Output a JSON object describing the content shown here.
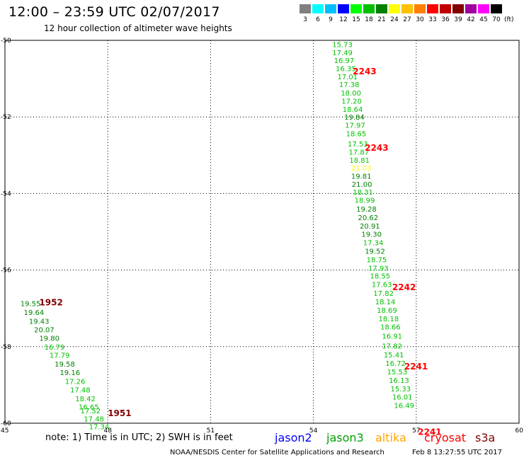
{
  "header": {
    "title": "12:00 – 23:59 UTC 02/07/2017",
    "subtitle": "12 hour collection of altimeter wave heights"
  },
  "legend": {
    "unit": "(ft)",
    "bins": [
      {
        "label": "3",
        "color": "#808080"
      },
      {
        "label": "6",
        "color": "#00ffff"
      },
      {
        "label": "9",
        "color": "#00bfff"
      },
      {
        "label": "12",
        "color": "#0000ff"
      },
      {
        "label": "15",
        "color": "#00ff00"
      },
      {
        "label": "18",
        "color": "#00c000"
      },
      {
        "label": "21",
        "color": "#008000"
      },
      {
        "label": "24",
        "color": "#ffff00"
      },
      {
        "label": "27",
        "color": "#ffc000"
      },
      {
        "label": "30",
        "color": "#ff8000"
      },
      {
        "label": "33",
        "color": "#ff0000"
      },
      {
        "label": "36",
        "color": "#c00000"
      },
      {
        "label": "39",
        "color": "#800000"
      },
      {
        "label": "42",
        "color": "#a000a0"
      },
      {
        "label": "45",
        "color": "#ff00ff"
      },
      {
        "label": "70",
        "color": "#000000"
      }
    ]
  },
  "map": {
    "lon_ticks": [
      "45",
      "48",
      "51",
      "54",
      "57",
      "60"
    ],
    "lat_ticks": [
      "-50",
      "-52",
      "-54",
      "-56",
      "-58",
      "-60"
    ]
  },
  "tracks": [
    {
      "pass_labels": [
        {
          "text": "1952",
          "color": "#800000",
          "lon": 46.0,
          "lat": -56.85
        },
        {
          "text": "1951",
          "color": "#800000",
          "lon": 48.0,
          "lat": -59.74
        }
      ],
      "observations": [
        {
          "lon": 45.45,
          "lat": -56.87,
          "value": "19.55",
          "color": "#008000"
        },
        {
          "lon": 45.55,
          "lat": -57.1,
          "value": "19.64",
          "color": "#008000"
        },
        {
          "lon": 45.7,
          "lat": -57.33,
          "value": "19.43",
          "color": "#008000"
        },
        {
          "lon": 45.85,
          "lat": -57.55,
          "value": "20.07",
          "color": "#008000"
        },
        {
          "lon": 46.0,
          "lat": -57.77,
          "value": "19.80",
          "color": "#008000"
        },
        {
          "lon": 46.15,
          "lat": -58.0,
          "value": "16.79",
          "color": "#00c000"
        },
        {
          "lon": 46.3,
          "lat": -58.22,
          "value": "17.79",
          "color": "#00c000"
        },
        {
          "lon": 46.45,
          "lat": -58.45,
          "value": "19.58",
          "color": "#008000"
        },
        {
          "lon": 46.6,
          "lat": -58.67,
          "value": "19.16",
          "color": "#008000"
        },
        {
          "lon": 46.75,
          "lat": -58.9,
          "value": "17.26",
          "color": "#00c000"
        },
        {
          "lon": 46.9,
          "lat": -59.12,
          "value": "17.48",
          "color": "#00c000"
        },
        {
          "lon": 47.05,
          "lat": -59.35,
          "value": "18.42",
          "color": "#00c000"
        },
        {
          "lon": 47.15,
          "lat": -59.57,
          "value": "16.65",
          "color": "#00c000"
        },
        {
          "lon": 47.2,
          "lat": -59.67,
          "value": "17.52",
          "color": "#00c000"
        },
        {
          "lon": 47.3,
          "lat": -59.88,
          "value": "17.48",
          "color": "#00c000"
        },
        {
          "lon": 47.45,
          "lat": -60.08,
          "value": "17.34",
          "color": "#00c000"
        }
      ]
    },
    {
      "pass_labels": [
        {
          "text": "2243",
          "color": "#ff0000",
          "lon": 55.15,
          "lat": -50.81
        },
        {
          "text": "2243",
          "color": "#ff0000",
          "lon": 55.5,
          "lat": -52.81
        },
        {
          "text": "2242",
          "color": "#ff0000",
          "lon": 56.3,
          "lat": -56.45
        },
        {
          "text": "2241",
          "color": "#ff0000",
          "lon": 56.65,
          "lat": -58.52
        },
        {
          "text": "2241",
          "color": "#ff0000",
          "lon": 57.05,
          "lat": -60.23
        }
      ],
      "observations": [
        {
          "lon": 54.55,
          "lat": -50.1,
          "value": "15.73",
          "color": "#00c000"
        },
        {
          "lon": 54.55,
          "lat": -50.31,
          "value": "17.49",
          "color": "#00c000"
        },
        {
          "lon": 54.6,
          "lat": -50.52,
          "value": "16.97",
          "color": "#00c000"
        },
        {
          "lon": 54.65,
          "lat": -50.73,
          "value": "16.35",
          "color": "#00c000"
        },
        {
          "lon": 54.7,
          "lat": -50.94,
          "value": "17.01",
          "color": "#00c000"
        },
        {
          "lon": 54.75,
          "lat": -51.15,
          "value": "17.38",
          "color": "#00c000"
        },
        {
          "lon": 54.8,
          "lat": -51.37,
          "value": "18.00",
          "color": "#00c000"
        },
        {
          "lon": 54.82,
          "lat": -51.58,
          "value": "17.20",
          "color": "#00c000"
        },
        {
          "lon": 54.85,
          "lat": -51.79,
          "value": "18.64",
          "color": "#00c000"
        },
        {
          "lon": 54.9,
          "lat": -52.0,
          "value": "19.84",
          "color": "#008000"
        },
        {
          "lon": 54.92,
          "lat": -52.21,
          "value": "17.97",
          "color": "#00c000"
        },
        {
          "lon": 54.95,
          "lat": -52.43,
          "value": "18.65",
          "color": "#00c000"
        },
        {
          "lon": 55.0,
          "lat": -52.7,
          "value": "17.53",
          "color": "#00c000"
        },
        {
          "lon": 55.03,
          "lat": -52.91,
          "value": "17.87",
          "color": "#00c000"
        },
        {
          "lon": 55.05,
          "lat": -53.12,
          "value": "18.81",
          "color": "#00c000"
        },
        {
          "lon": 55.1,
          "lat": -53.33,
          "value": "21.03",
          "color": "#ffff00"
        },
        {
          "lon": 55.1,
          "lat": -53.54,
          "value": "19.81",
          "color": "#008000"
        },
        {
          "lon": 55.12,
          "lat": -53.75,
          "value": "21.00",
          "color": "#008000"
        },
        {
          "lon": 55.15,
          "lat": -53.96,
          "value": "18.31",
          "color": "#00c000"
        },
        {
          "lon": 55.2,
          "lat": -54.17,
          "value": "18.99",
          "color": "#00c000"
        },
        {
          "lon": 55.25,
          "lat": -54.4,
          "value": "19.28",
          "color": "#008000"
        },
        {
          "lon": 55.3,
          "lat": -54.62,
          "value": "20.62",
          "color": "#008000"
        },
        {
          "lon": 55.35,
          "lat": -54.84,
          "value": "20.91",
          "color": "#008000"
        },
        {
          "lon": 55.4,
          "lat": -55.06,
          "value": "19.30",
          "color": "#008000"
        },
        {
          "lon": 55.45,
          "lat": -55.28,
          "value": "17.34",
          "color": "#00c000"
        },
        {
          "lon": 55.5,
          "lat": -55.5,
          "value": "19.52",
          "color": "#008000"
        },
        {
          "lon": 55.55,
          "lat": -55.72,
          "value": "18.75",
          "color": "#00c000"
        },
        {
          "lon": 55.6,
          "lat": -55.94,
          "value": "17.93",
          "color": "#00c000"
        },
        {
          "lon": 55.65,
          "lat": -56.15,
          "value": "18.55",
          "color": "#00c000"
        },
        {
          "lon": 55.7,
          "lat": -56.37,
          "value": "17.63",
          "color": "#00c000"
        },
        {
          "lon": 55.75,
          "lat": -56.6,
          "value": "17.82",
          "color": "#00c000"
        },
        {
          "lon": 55.8,
          "lat": -56.82,
          "value": "18.14",
          "color": "#00c000"
        },
        {
          "lon": 55.85,
          "lat": -57.04,
          "value": "18.69",
          "color": "#00c000"
        },
        {
          "lon": 55.9,
          "lat": -57.26,
          "value": "18.18",
          "color": "#00c000"
        },
        {
          "lon": 55.95,
          "lat": -57.48,
          "value": "18.66",
          "color": "#00c000"
        },
        {
          "lon": 56.0,
          "lat": -57.72,
          "value": "16.91",
          "color": "#00c000"
        },
        {
          "lon": 56.0,
          "lat": -57.98,
          "value": "17.82",
          "color": "#00c000"
        },
        {
          "lon": 56.05,
          "lat": -58.21,
          "value": "15.41",
          "color": "#00c000"
        },
        {
          "lon": 56.1,
          "lat": -58.43,
          "value": "16.72",
          "color": "#00c000"
        },
        {
          "lon": 56.15,
          "lat": -58.65,
          "value": "15.53",
          "color": "#00c000"
        },
        {
          "lon": 56.2,
          "lat": -58.87,
          "value": "16.13",
          "color": "#00c000"
        },
        {
          "lon": 56.25,
          "lat": -59.09,
          "value": "15.33",
          "color": "#00c000"
        },
        {
          "lon": 56.3,
          "lat": -59.31,
          "value": "16.01",
          "color": "#00c000"
        },
        {
          "lon": 56.35,
          "lat": -59.53,
          "value": "16.49",
          "color": "#00c000"
        }
      ]
    }
  ],
  "footer": {
    "note": "note: 1) Time is in UTC; 2) SWH is in feet",
    "missions": [
      {
        "name": "jason2",
        "color": "#0000ff"
      },
      {
        "name": "jason3",
        "color": "#00a000"
      },
      {
        "name": "altika",
        "color": "#ffa500"
      },
      {
        "name": "cryosat",
        "color": "#ff0000"
      },
      {
        "name": "s3a",
        "color": "#800000"
      }
    ],
    "credit": "NOAA/NESDIS Center for Satellite Applications and Research",
    "timestamp": "Feb  8 13:27:55 UTC 2017"
  }
}
